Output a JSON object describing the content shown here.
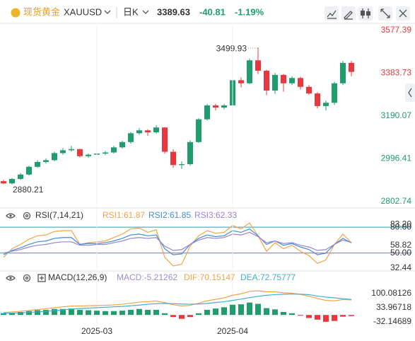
{
  "header": {
    "name": "现货黄金",
    "symbol": "XAUUSD",
    "period": "日K",
    "price": 3389.63,
    "change": -40.81,
    "change_percent": "-1.19%"
  },
  "chart_data": [
    {
      "type": "candlestick",
      "open": [
        2895,
        2885,
        2905,
        2925,
        2960,
        2982,
        2990,
        3022,
        3035,
        3040,
        3008,
        3015,
        3020,
        3025,
        3048,
        3072,
        3112,
        3125,
        3116,
        3138,
        3028,
        2968,
        2972,
        3072,
        3175,
        3238,
        3228,
        3238,
        3352,
        3338,
        3442,
        3395,
        3305,
        3376,
        3338,
        3362,
        3322,
        3292,
        3235,
        3250,
        3338,
        3430.44
      ],
      "high": [
        2902,
        2910,
        2932,
        2965,
        2990,
        2998,
        3028,
        3045,
        3055,
        3042,
        3020,
        3028,
        3032,
        3055,
        3078,
        3118,
        3135,
        3130,
        3148,
        3140,
        3040,
        2985,
        3080,
        3180,
        3245,
        3245,
        3245,
        3360,
        3365,
        3450,
        3499.93,
        3400,
        3385,
        3380,
        3370,
        3368,
        3330,
        3298,
        3260,
        3345,
        3440,
        3440
      ],
      "low": [
        2882,
        2880.21,
        2900,
        2920,
        2955,
        2975,
        2985,
        3015,
        3028,
        3002,
        3000,
        3008,
        3012,
        3020,
        3042,
        3065,
        3105,
        3100,
        3110,
        3020,
        2955,
        2950,
        2965,
        3068,
        3170,
        3215,
        3220,
        3232,
        3320,
        3335,
        3380,
        3285,
        3290,
        3300,
        3330,
        3310,
        3285,
        3225,
        3215,
        3240,
        3330,
        3370
      ],
      "close": [
        2885,
        2905,
        2925,
        2960,
        2982,
        2990,
        3022,
        3035,
        3040,
        3008,
        3015,
        3020,
        3025,
        3048,
        3072,
        3112,
        3125,
        3116,
        3138,
        3028,
        2968,
        2972,
        3072,
        3175,
        3238,
        3228,
        3238,
        3352,
        3338,
        3442,
        3395,
        3305,
        3376,
        3338,
        3362,
        3322,
        3292,
        3235,
        3250,
        3338,
        3430.44,
        3389.63
      ],
      "up_color": "#1f9d6f",
      "down_color": "#e8383d",
      "ylim": [
        2780,
        3603
      ],
      "yticks": [
        3577.39,
        3383.73,
        3190.07,
        2996.41,
        2802.74
      ],
      "max_label": 3499.93,
      "min_label": 2880.21,
      "grid": false
    },
    {
      "type": "line",
      "title": "RSI(7,14,21)",
      "series": [
        {
          "name": "RSI1:61.87",
          "color": "#f3a446",
          "values": [
            45,
            55,
            60,
            66,
            70,
            71,
            75,
            76,
            76,
            60,
            62,
            63,
            64,
            68,
            72,
            78,
            79,
            74,
            77,
            45,
            35,
            37,
            58,
            70,
            76,
            73,
            74,
            82,
            78,
            85,
            70,
            52,
            62,
            55,
            59,
            52,
            47,
            38,
            42,
            60,
            72,
            61.87
          ]
        },
        {
          "name": "RSI2:61.85",
          "color": "#3d8fd6",
          "values": [
            48,
            53,
            56,
            60,
            63,
            64,
            67,
            68,
            68,
            60,
            61,
            61,
            62,
            64,
            67,
            71,
            72,
            70,
            71,
            55,
            48,
            49,
            60,
            67,
            71,
            69,
            70,
            76,
            74,
            78,
            70,
            60,
            64,
            59,
            61,
            57,
            54,
            48,
            50,
            60,
            67,
            61.85
          ]
        },
        {
          "name": "RSI3:62.33",
          "color": "#9b82d8",
          "values": [
            50,
            52,
            54,
            57,
            59,
            60,
            62,
            63,
            63,
            59,
            59,
            60,
            60,
            62,
            64,
            67,
            68,
            67,
            68,
            58,
            53,
            54,
            60,
            65,
            68,
            67,
            68,
            72,
            71,
            74,
            69,
            62,
            64,
            61,
            62,
            59,
            57,
            53,
            54,
            60,
            65,
            62.33
          ]
        }
      ],
      "bands": [
        {
          "value": 80,
          "label": "80.00"
        },
        {
          "value": 50,
          "label": "50.00"
        }
      ],
      "band_color": "#4fb3c3",
      "ylim": [
        30,
        99
      ],
      "yticks": [
        {
          "value": 83.2,
          "label": "83.20"
        },
        58.82,
        32.44
      ]
    },
    {
      "type": "combo",
      "title": "MACD(12,26,9)",
      "categories": [
        null,
        null,
        null,
        null,
        null,
        null,
        null,
        null,
        null,
        null,
        null,
        "2025-03",
        null,
        null,
        null,
        null,
        null,
        null,
        null,
        null,
        null,
        null,
        null,
        null,
        null,
        null,
        null,
        "2025-04",
        null,
        null,
        null,
        null,
        null,
        null,
        null,
        null,
        null,
        null,
        null,
        null,
        null,
        null
      ],
      "series": [
        {
          "name": "MACD:-5.21262",
          "style": "bar",
          "color": "#a08cc8",
          "up_color": "#1f9d6f",
          "down_color": "#e8383d",
          "values": [
            8,
            10,
            14,
            18,
            22,
            24,
            28,
            28,
            30,
            24,
            22,
            20,
            18,
            18,
            20,
            24,
            28,
            24,
            24,
            8,
            -10,
            -18,
            -10,
            8,
            24,
            30,
            36,
            48,
            50,
            58,
            52,
            32,
            26,
            14,
            8,
            -2,
            -14,
            -22,
            -32,
            -28,
            -8,
            -5.21262
          ]
        },
        {
          "name": "DIF:70.15147",
          "style": "line",
          "color": "#f3a446",
          "values": [
            12,
            14,
            17,
            21,
            25,
            29,
            34,
            38,
            42,
            42,
            43,
            44,
            45,
            47,
            50,
            55,
            60,
            62,
            65,
            58,
            48,
            42,
            45,
            55,
            66,
            73,
            80,
            92,
            99,
            110,
            113,
            108,
            108,
            104,
            102,
            96,
            88,
            77,
            68,
            66,
            72,
            70.15147
          ]
        },
        {
          "name": "DEA:72.75777",
          "style": "line",
          "color": "#3fb1c6",
          "values": [
            8,
            9,
            10,
            12,
            14,
            17,
            20,
            24,
            27,
            30,
            32,
            34,
            36,
            38,
            40,
            43,
            46,
            50,
            53,
            54,
            53,
            51,
            50,
            51,
            54,
            58,
            62,
            68,
            74,
            81,
            87,
            92,
            95,
            97,
            98,
            97,
            95,
            88,
            84,
            80,
            76,
            72.75777
          ]
        }
      ],
      "ylim": [
        -82,
        199
      ],
      "yticks": [
        100.08126,
        33.96718,
        -32.14689
      ]
    }
  ]
}
